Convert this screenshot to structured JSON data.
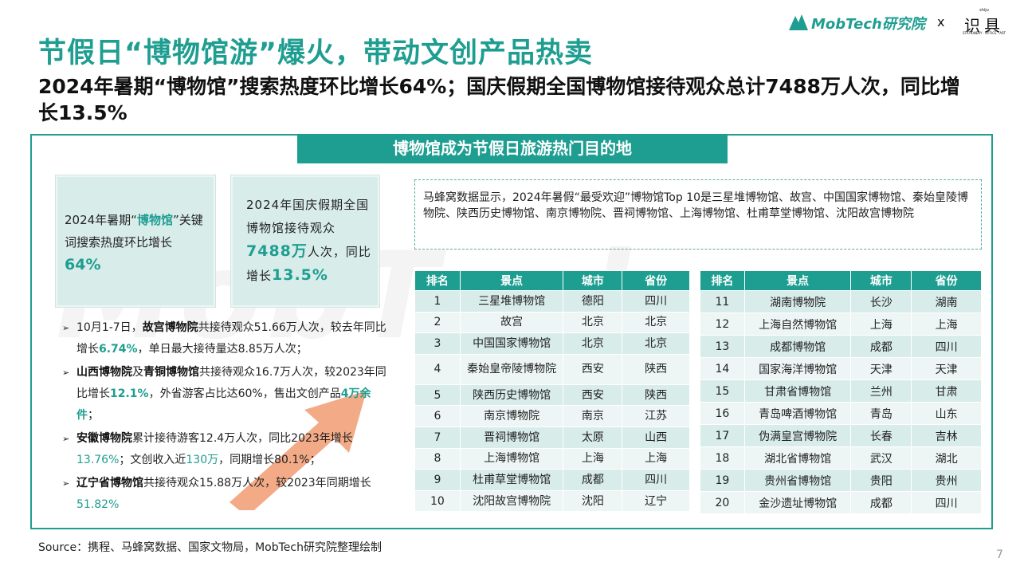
{
  "title": "节假日“博物馆游”爆火，带动文创产品热卖",
  "subtitle": "2024年暑期“博物馆”搜索热度环比增长64%；国庆假期全国博物馆接待观众总计7488万人次，同比增长13.5%",
  "logo": {
    "brand1": "MobTech研究院",
    "separator": "x",
    "brand2_small": "shiju",
    "brand2": "识具",
    "brand2_tag": "STATIONERY · OFFICE · ART"
  },
  "banner": "博物馆成为节假日旅游热门目的地",
  "watermark": "MobTech",
  "stat1": {
    "pre": "2024年暑期“",
    "kw": "博物馆",
    "post": "”关键词搜索热度环比增长",
    "value": "64%"
  },
  "stat2": {
    "pre": "2024年国庆假期全国博物馆接待观众",
    "value": "7488万",
    "mid": "人次，同比增长",
    "growth": "13.5%"
  },
  "bullets": {
    "b1": {
      "name": "故宫博物院",
      "pre": "10月1-7日，",
      "text1": "共接待观众51.66万人次，较去年同比增长",
      "v1": "6.74%",
      "text2": "，单日最大接待量达8.85万人次；"
    },
    "b2": {
      "name1": "山西博物院",
      "and": "及",
      "name2": "青铜博物馆",
      "text1": "共接待观众16.7万人次，较2023年同比增长",
      "v1": "12.1%",
      "text2": "，外省游客占比达60%，售出文创产品",
      "v2": "4万余件",
      "text3": "；"
    },
    "b3": {
      "name": "安徽博物院",
      "text1": "累计接待游客12.4万人次，同比2023年增长",
      "v1": "13.76%",
      "text2": "；文创收入近",
      "v2": "130万",
      "text3": "，同期增长80.1%；"
    },
    "b4": {
      "name": "辽宁省博物馆",
      "text1": "共接待观众15.88万人次，较2023年同期增长",
      "v1": "51.82%"
    }
  },
  "note": "马蜂窝数据显示，2024年暑假“最受欢迎”博物馆Top 10是三星堆博物馆、故宫、中国国家博物馆、秦始皇陵博物院、陕西历史博物馆、南京博物院、晋祠博物馆、上海博物馆、杜甫草堂博物馆、沈阳故宫博物院",
  "table_headers": [
    "排名",
    "景点",
    "城市",
    "省份"
  ],
  "table1": [
    [
      "1",
      "三星堆博物馆",
      "德阳",
      "四川"
    ],
    [
      "2",
      "故宫",
      "北京",
      "北京"
    ],
    [
      "3",
      "中国国家博物馆",
      "北京",
      "北京"
    ],
    [
      "4",
      "秦始皇帝陵博物院",
      "西安",
      "陕西"
    ],
    [
      "5",
      "陕西历史博物馆",
      "西安",
      "陕西"
    ],
    [
      "6",
      "南京博物院",
      "南京",
      "江苏"
    ],
    [
      "7",
      "晋祠博物馆",
      "太原",
      "山西"
    ],
    [
      "8",
      "上海博物馆",
      "上海",
      "上海"
    ],
    [
      "9",
      "杜甫草堂博物馆",
      "成都",
      "四川"
    ],
    [
      "10",
      "沈阳故宫博物院",
      "沈阳",
      "辽宁"
    ]
  ],
  "table2": [
    [
      "11",
      "湖南博物院",
      "长沙",
      "湖南"
    ],
    [
      "12",
      "上海自然博物馆",
      "上海",
      "上海"
    ],
    [
      "13",
      "成都博物馆",
      "成都",
      "四川"
    ],
    [
      "14",
      "国家海洋博物馆",
      "天津",
      "天津"
    ],
    [
      "15",
      "甘肃省博物馆",
      "兰州",
      "甘肃"
    ],
    [
      "16",
      "青岛啤酒博物馆",
      "青岛",
      "山东"
    ],
    [
      "17",
      "伪满皇宫博物院",
      "长春",
      "吉林"
    ],
    [
      "18",
      "湖北省博物馆",
      "武汉",
      "湖北"
    ],
    [
      "19",
      "贵州省博物馆",
      "贵阳",
      "贵州"
    ],
    [
      "20",
      "金沙遗址博物馆",
      "成都",
      "四川"
    ]
  ],
  "source": "Source：携程、马蜂窝数据、国家文物局，MobTech研究院整理绘制",
  "page_number": "7",
  "colors": {
    "accent": "#1e9e91",
    "arrow": "#f2a27a",
    "card": "#d8ecea"
  }
}
